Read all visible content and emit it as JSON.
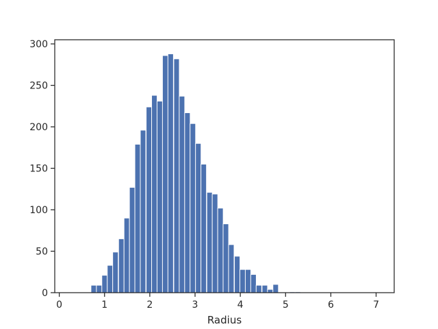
{
  "chart_data": {
    "type": "bar",
    "subtype": "histogram",
    "title": "",
    "xlabel": "Radius",
    "ylabel": "",
    "xlim": [
      -0.1,
      7.4
    ],
    "ylim": [
      0,
      305
    ],
    "x_ticks": [
      0,
      1,
      2,
      3,
      4,
      5,
      6,
      7
    ],
    "y_ticks": [
      0,
      50,
      100,
      150,
      200,
      250,
      300
    ],
    "bin_width": 0.122,
    "bins": [
      {
        "x": 0.7,
        "count": 9
      },
      {
        "x": 0.82,
        "count": 9
      },
      {
        "x": 0.94,
        "count": 21
      },
      {
        "x": 1.06,
        "count": 33
      },
      {
        "x": 1.18,
        "count": 49
      },
      {
        "x": 1.31,
        "count": 65
      },
      {
        "x": 1.43,
        "count": 90
      },
      {
        "x": 1.55,
        "count": 127
      },
      {
        "x": 1.67,
        "count": 179
      },
      {
        "x": 1.79,
        "count": 196
      },
      {
        "x": 1.92,
        "count": 224
      },
      {
        "x": 2.04,
        "count": 238
      },
      {
        "x": 2.16,
        "count": 231
      },
      {
        "x": 2.28,
        "count": 286
      },
      {
        "x": 2.4,
        "count": 288
      },
      {
        "x": 2.53,
        "count": 282
      },
      {
        "x": 2.65,
        "count": 237
      },
      {
        "x": 2.77,
        "count": 217
      },
      {
        "x": 2.89,
        "count": 204
      },
      {
        "x": 3.01,
        "count": 180
      },
      {
        "x": 3.13,
        "count": 155
      },
      {
        "x": 3.26,
        "count": 121
      },
      {
        "x": 3.38,
        "count": 119
      },
      {
        "x": 3.5,
        "count": 102
      },
      {
        "x": 3.62,
        "count": 83
      },
      {
        "x": 3.74,
        "count": 58
      },
      {
        "x": 3.87,
        "count": 44
      },
      {
        "x": 3.99,
        "count": 28
      },
      {
        "x": 4.11,
        "count": 28
      },
      {
        "x": 4.23,
        "count": 22
      },
      {
        "x": 4.35,
        "count": 9
      },
      {
        "x": 4.48,
        "count": 9
      },
      {
        "x": 4.6,
        "count": 4
      },
      {
        "x": 4.72,
        "count": 10
      },
      {
        "x": 4.84,
        "count": 0
      },
      {
        "x": 4.96,
        "count": 0
      },
      {
        "x": 5.09,
        "count": 1
      },
      {
        "x": 5.21,
        "count": 1
      }
    ],
    "bar_color": "#4c72b0",
    "grid": false,
    "legend": "none"
  }
}
